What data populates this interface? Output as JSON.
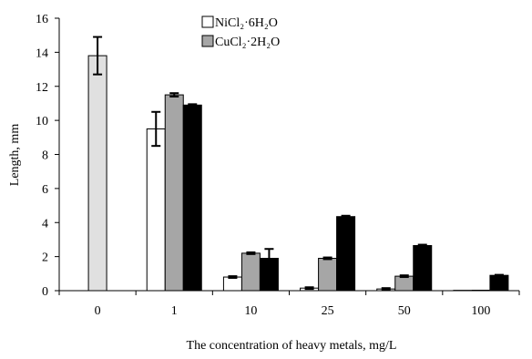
{
  "chart_data": {
    "type": "bar",
    "categories": [
      "0",
      "1",
      "10",
      "25",
      "50",
      "100"
    ],
    "xlabel": "The concentration of heavy metals, mg/L",
    "ylabel": "Length, mm",
    "ylim": [
      0,
      16
    ],
    "yticks": [
      0,
      2,
      4,
      6,
      8,
      10,
      12,
      14,
      16
    ],
    "grid": false,
    "legend_position": "top",
    "control": {
      "category": "0",
      "value": 13.8,
      "error": 1.1,
      "color": "#e0e0e0"
    },
    "series": [
      {
        "name": "NiCl₂·6H₂O",
        "color": "#ffffff",
        "values": [
          null,
          9.5,
          0.8,
          0.15,
          0.1,
          0.02
        ],
        "errors": [
          null,
          1.0,
          0.05,
          0.05,
          0.05,
          0.0
        ]
      },
      {
        "name": "CuCl₂·2H₂O",
        "color": "#a6a6a6",
        "values": [
          null,
          11.5,
          2.2,
          1.9,
          0.85,
          0.0
        ],
        "errors": [
          null,
          0.1,
          0.05,
          0.05,
          0.05,
          0.0
        ]
      },
      {
        "name": "",
        "color": "#000000",
        "values": [
          null,
          10.9,
          1.9,
          4.35,
          2.65,
          0.9
        ],
        "errors": [
          null,
          0.05,
          0.55,
          0.05,
          0.05,
          0.03
        ]
      }
    ]
  }
}
